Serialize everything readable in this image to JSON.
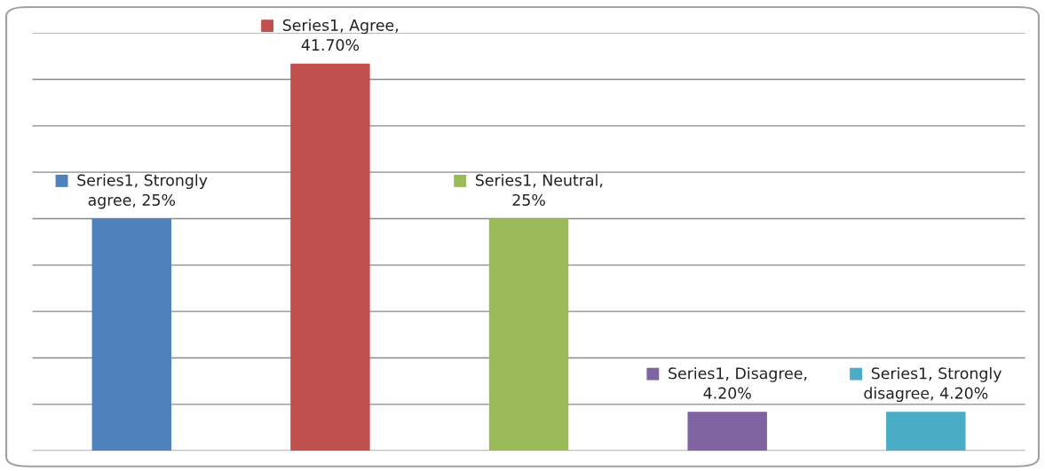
{
  "chart_data": {
    "type": "bar",
    "categories": [
      null,
      null,
      null,
      null,
      null
    ],
    "series": [
      {
        "values": [
          25,
          41.7,
          25,
          4.2,
          4.2
        ],
        "colors": [
          "#4f81bd",
          "#c0504d",
          "#9bbb59",
          "#8064a2",
          "#4bacc6"
        ],
        "value_labels": [
          "Series1, Strongly agree, 25%",
          "Series1, Agree, 41.70%",
          "Series1, Neutral, 25%",
          "Series1, Disagree, 4.20%",
          "Series1, Strongly disagree, 4.20%"
        ]
      }
    ],
    "ylim": [
      0,
      45
    ],
    "yticks": [
      {
        "value": 0,
        "label": null
      },
      {
        "value": 5,
        "label": null
      },
      {
        "value": 10,
        "label": null
      },
      {
        "value": 15,
        "label": null
      },
      {
        "value": 20,
        "label": null
      },
      {
        "value": 25,
        "label": null
      },
      {
        "value": 30,
        "label": null
      },
      {
        "value": 35,
        "label": null
      },
      {
        "value": 40,
        "label": null
      },
      {
        "value": 45,
        "label": null
      }
    ],
    "grid": "y",
    "legend": false
  }
}
